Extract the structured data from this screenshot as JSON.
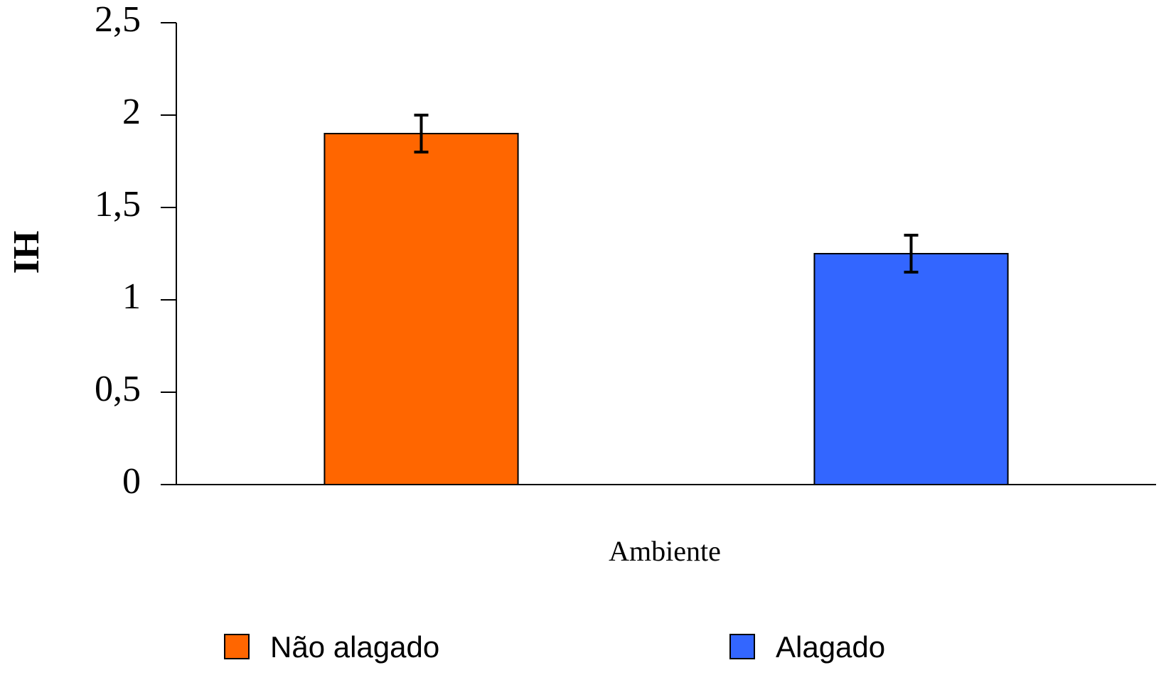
{
  "chart_data": {
    "type": "bar",
    "y_label": "IH",
    "x_label": "Ambiente",
    "series": [
      {
        "name": "Não alagado",
        "color": "#ff6600",
        "values": [
          1.9
        ],
        "errors": [
          0.1
        ]
      },
      {
        "name": "Alagado",
        "color": "#3366ff",
        "values": [
          1.25
        ],
        "errors": [
          0.1
        ]
      }
    ],
    "ylim": [
      0,
      2.5
    ],
    "yticks": [
      0,
      {
        "value": 0.5,
        "label": "0,5"
      },
      1,
      {
        "value": 1.5,
        "label": "1,5"
      },
      2,
      {
        "value": 2.5,
        "label": "2,5"
      }
    ],
    "grid": false
  }
}
